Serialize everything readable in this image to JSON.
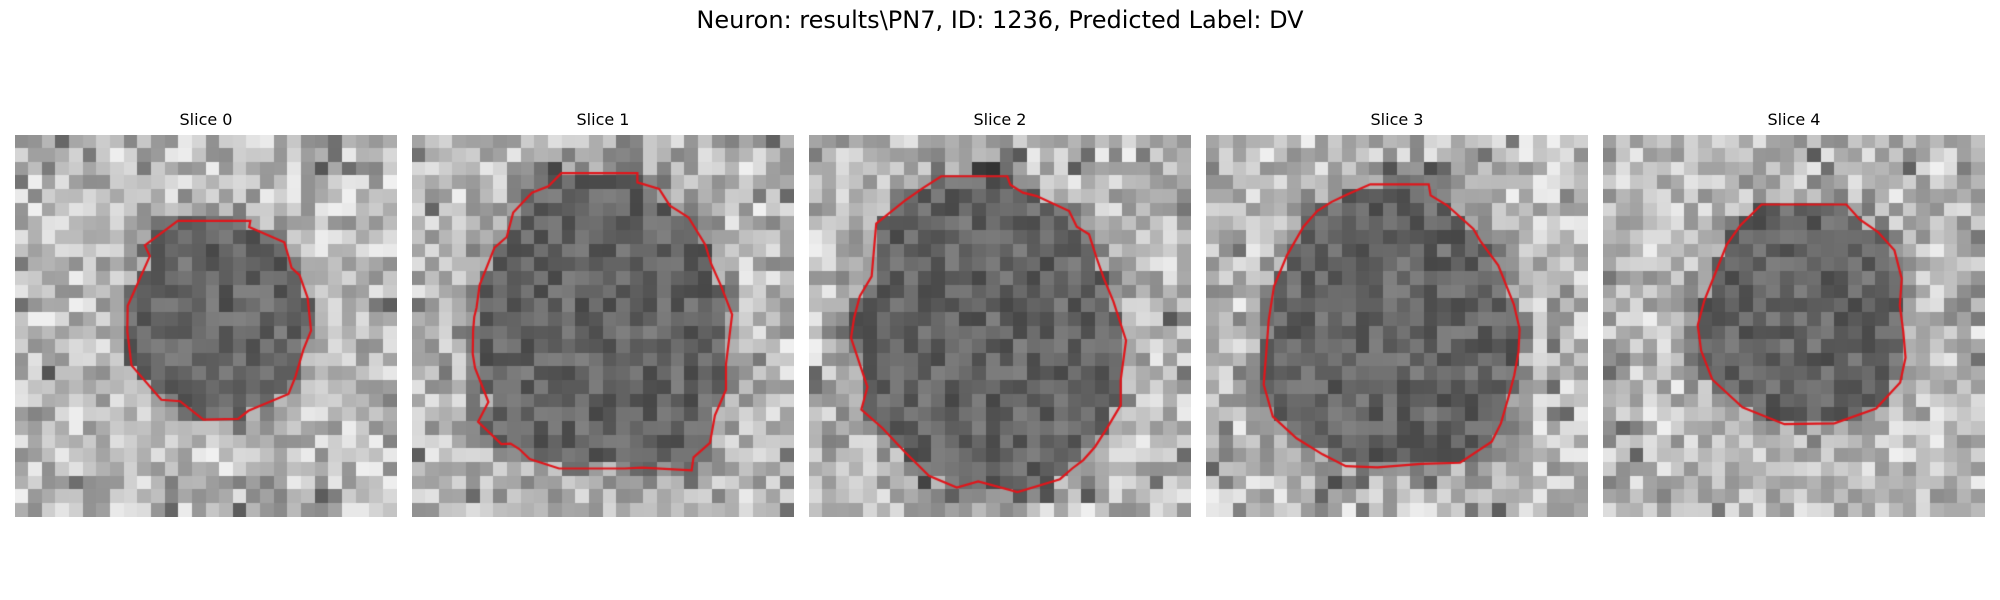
{
  "figure": {
    "title": "Neuron: results\\PN7, ID: 1236, Predicted Label: DV"
  },
  "colors": {
    "background": "#ffffff",
    "contour": "#e0161b"
  },
  "panels": [
    {
      "title": "Slice 0",
      "contour": [
        [
          0.426,
          0.225
        ],
        [
          0.616,
          0.225
        ],
        [
          0.613,
          0.241
        ],
        [
          0.705,
          0.281
        ],
        [
          0.716,
          0.318
        ],
        [
          0.724,
          0.348
        ],
        [
          0.745,
          0.367
        ],
        [
          0.766,
          0.426
        ],
        [
          0.775,
          0.512
        ],
        [
          0.755,
          0.562
        ],
        [
          0.734,
          0.633
        ],
        [
          0.716,
          0.678
        ],
        [
          0.611,
          0.722
        ],
        [
          0.584,
          0.743
        ],
        [
          0.493,
          0.745
        ],
        [
          0.432,
          0.697
        ],
        [
          0.383,
          0.693
        ],
        [
          0.305,
          0.603
        ],
        [
          0.294,
          0.514
        ],
        [
          0.295,
          0.447
        ],
        [
          0.353,
          0.317
        ],
        [
          0.34,
          0.289
        ]
      ]
    },
    {
      "title": "Slice 1",
      "contour": [
        [
          0.391,
          0.1
        ],
        [
          0.59,
          0.1
        ],
        [
          0.59,
          0.124
        ],
        [
          0.647,
          0.141
        ],
        [
          0.675,
          0.185
        ],
        [
          0.699,
          0.2
        ],
        [
          0.724,
          0.216
        ],
        [
          0.768,
          0.288
        ],
        [
          0.783,
          0.337
        ],
        [
          0.809,
          0.395
        ],
        [
          0.838,
          0.47
        ],
        [
          0.822,
          0.6
        ],
        [
          0.822,
          0.667
        ],
        [
          0.793,
          0.734
        ],
        [
          0.78,
          0.806
        ],
        [
          0.737,
          0.844
        ],
        [
          0.732,
          0.878
        ],
        [
          0.602,
          0.871
        ],
        [
          0.557,
          0.873
        ],
        [
          0.45,
          0.873
        ],
        [
          0.385,
          0.873
        ],
        [
          0.308,
          0.848
        ],
        [
          0.281,
          0.822
        ],
        [
          0.258,
          0.808
        ],
        [
          0.234,
          0.809
        ],
        [
          0.173,
          0.751
        ],
        [
          0.2,
          0.699
        ],
        [
          0.165,
          0.61
        ],
        [
          0.159,
          0.573
        ],
        [
          0.16,
          0.512
        ],
        [
          0.163,
          0.476
        ],
        [
          0.169,
          0.452
        ],
        [
          0.177,
          0.393
        ],
        [
          0.216,
          0.295
        ],
        [
          0.248,
          0.267
        ],
        [
          0.265,
          0.203
        ],
        [
          0.314,
          0.151
        ],
        [
          0.357,
          0.134
        ]
      ]
    },
    {
      "title": "Slice 2",
      "contour": [
        [
          0.346,
          0.108
        ],
        [
          0.519,
          0.108
        ],
        [
          0.527,
          0.13
        ],
        [
          0.56,
          0.151
        ],
        [
          0.596,
          0.16
        ],
        [
          0.681,
          0.199
        ],
        [
          0.701,
          0.24
        ],
        [
          0.733,
          0.26
        ],
        [
          0.753,
          0.322
        ],
        [
          0.772,
          0.376
        ],
        [
          0.797,
          0.436
        ],
        [
          0.83,
          0.538
        ],
        [
          0.816,
          0.641
        ],
        [
          0.816,
          0.707
        ],
        [
          0.781,
          0.766
        ],
        [
          0.749,
          0.816
        ],
        [
          0.718,
          0.851
        ],
        [
          0.689,
          0.873
        ],
        [
          0.657,
          0.901
        ],
        [
          0.546,
          0.935
        ],
        [
          0.443,
          0.907
        ],
        [
          0.387,
          0.923
        ],
        [
          0.314,
          0.892
        ],
        [
          0.251,
          0.83
        ],
        [
          0.192,
          0.767
        ],
        [
          0.137,
          0.719
        ],
        [
          0.153,
          0.66
        ],
        [
          0.136,
          0.609
        ],
        [
          0.11,
          0.531
        ],
        [
          0.118,
          0.479
        ],
        [
          0.133,
          0.422
        ],
        [
          0.164,
          0.37
        ],
        [
          0.17,
          0.301
        ],
        [
          0.176,
          0.232
        ],
        [
          0.251,
          0.172
        ],
        [
          0.298,
          0.139
        ]
      ]
    },
    {
      "title": "Slice 3",
      "contour": [
        [
          0.43,
          0.129
        ],
        [
          0.583,
          0.129
        ],
        [
          0.588,
          0.158
        ],
        [
          0.631,
          0.184
        ],
        [
          0.7,
          0.246
        ],
        [
          0.718,
          0.277
        ],
        [
          0.765,
          0.341
        ],
        [
          0.806,
          0.444
        ],
        [
          0.821,
          0.508
        ],
        [
          0.818,
          0.568
        ],
        [
          0.807,
          0.629
        ],
        [
          0.791,
          0.689
        ],
        [
          0.772,
          0.755
        ],
        [
          0.748,
          0.803
        ],
        [
          0.665,
          0.858
        ],
        [
          0.563,
          0.861
        ],
        [
          0.449,
          0.87
        ],
        [
          0.366,
          0.867
        ],
        [
          0.305,
          0.836
        ],
        [
          0.237,
          0.794
        ],
        [
          0.175,
          0.737
        ],
        [
          0.151,
          0.653
        ],
        [
          0.158,
          0.567
        ],
        [
          0.164,
          0.486
        ],
        [
          0.178,
          0.396
        ],
        [
          0.212,
          0.315
        ],
        [
          0.255,
          0.24
        ],
        [
          0.291,
          0.199
        ],
        [
          0.329,
          0.175
        ],
        [
          0.371,
          0.155
        ]
      ]
    },
    {
      "title": "Slice 4",
      "contour": [
        [
          0.415,
          0.182
        ],
        [
          0.637,
          0.182
        ],
        [
          0.672,
          0.221
        ],
        [
          0.72,
          0.254
        ],
        [
          0.763,
          0.302
        ],
        [
          0.782,
          0.376
        ],
        [
          0.777,
          0.447
        ],
        [
          0.786,
          0.514
        ],
        [
          0.792,
          0.583
        ],
        [
          0.778,
          0.648
        ],
        [
          0.715,
          0.716
        ],
        [
          0.606,
          0.755
        ],
        [
          0.475,
          0.757
        ],
        [
          0.365,
          0.713
        ],
        [
          0.286,
          0.64
        ],
        [
          0.257,
          0.565
        ],
        [
          0.248,
          0.498
        ],
        [
          0.265,
          0.434
        ],
        [
          0.294,
          0.362
        ],
        [
          0.324,
          0.287
        ],
        [
          0.36,
          0.236
        ]
      ]
    }
  ]
}
